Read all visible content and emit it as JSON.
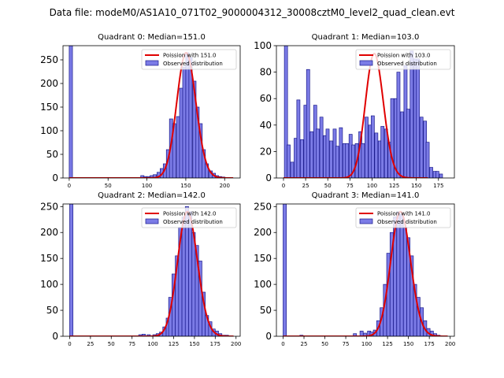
{
  "figure": {
    "suptitle": "Data file: modeM0/AS1A10_071T02_9000004312_30008cztM0_level2_quad_clean.evt"
  },
  "colors": {
    "bar_fill": "#7b7be6",
    "bar_edge": "#1a1a8c",
    "curve": "#e00000",
    "axes": "#000000"
  },
  "chart_data": [
    {
      "type": "bar",
      "title": "Quadrant 0: Median=151.0",
      "xlim": [
        -8,
        220
      ],
      "ylim": [
        0,
        280
      ],
      "xticks": [
        0,
        50,
        100,
        150,
        200
      ],
      "yticks": [
        0,
        50,
        100,
        150,
        200,
        250
      ],
      "bin_width": 4.2,
      "bins": [
        [
          0,
          280
        ],
        [
          92,
          5
        ],
        [
          96,
          3
        ],
        [
          100,
          3
        ],
        [
          104,
          5
        ],
        [
          108,
          7
        ],
        [
          113,
          12
        ],
        [
          117,
          20
        ],
        [
          121,
          30
        ],
        [
          125,
          60
        ],
        [
          129,
          125
        ],
        [
          133,
          115
        ],
        [
          138,
          130
        ],
        [
          142,
          190
        ],
        [
          146,
          235
        ],
        [
          150,
          265
        ],
        [
          154,
          255
        ],
        [
          159,
          205
        ],
        [
          163,
          150
        ],
        [
          167,
          115
        ],
        [
          171,
          60
        ],
        [
          175,
          30
        ],
        [
          180,
          15
        ],
        [
          184,
          10
        ],
        [
          188,
          5
        ],
        [
          192,
          3
        ],
        [
          196,
          2
        ]
      ],
      "fit": {
        "label": "Poission with 151.0",
        "lambda": 151.0,
        "amplitude": 265
      },
      "legend": {
        "curve_label": "Poission with 151.0",
        "bar_label": "Observed distribution",
        "position": "top-right"
      }
    },
    {
      "type": "bar",
      "title": "Quadrant 1: Median=103.0",
      "xlim": [
        -8,
        193
      ],
      "ylim": [
        0,
        100
      ],
      "xticks": [
        0,
        25,
        50,
        75,
        100,
        125,
        150,
        175
      ],
      "yticks": [
        0,
        20,
        40,
        60,
        80,
        100
      ],
      "bin_width": 3.6,
      "bins": [
        [
          1,
          100
        ],
        [
          4,
          25
        ],
        [
          8,
          12
        ],
        [
          12,
          30
        ],
        [
          15,
          59
        ],
        [
          19,
          29
        ],
        [
          23,
          55
        ],
        [
          26,
          82
        ],
        [
          30,
          35
        ],
        [
          34,
          55
        ],
        [
          37,
          37
        ],
        [
          41,
          46
        ],
        [
          45,
          32
        ],
        [
          48,
          37
        ],
        [
          52,
          28
        ],
        [
          56,
          37
        ],
        [
          59,
          24
        ],
        [
          63,
          38
        ],
        [
          67,
          26
        ],
        [
          70,
          26
        ],
        [
          74,
          33
        ],
        [
          77,
          25
        ],
        [
          81,
          26
        ],
        [
          85,
          35
        ],
        [
          88,
          26
        ],
        [
          92,
          46
        ],
        [
          96,
          40
        ],
        [
          99,
          47
        ],
        [
          103,
          34
        ],
        [
          107,
          28
        ],
        [
          110,
          39
        ],
        [
          114,
          37
        ],
        [
          118,
          27
        ],
        [
          121,
          60
        ],
        [
          125,
          60
        ],
        [
          128,
          80
        ],
        [
          132,
          50
        ],
        [
          136,
          85
        ],
        [
          139,
          52
        ],
        [
          143,
          96
        ],
        [
          147,
          90
        ],
        [
          150,
          90
        ],
        [
          154,
          46
        ],
        [
          158,
          43
        ],
        [
          161,
          27
        ],
        [
          165,
          8
        ],
        [
          169,
          5
        ],
        [
          172,
          5
        ],
        [
          176,
          3
        ]
      ],
      "fit": {
        "label": "Poission with 103.0",
        "lambda": 103.0,
        "amplitude": 94
      },
      "legend": {
        "curve_label": "Poission with 103.0",
        "bar_label": "Observed distribution",
        "position": "top-right"
      }
    },
    {
      "type": "bar",
      "title": "Quadrant 2: Median=142.0",
      "xlim": [
        -8,
        205
      ],
      "ylim": [
        0,
        255
      ],
      "xticks": [
        0,
        25,
        50,
        75,
        100,
        125,
        150,
        175,
        200
      ],
      "yticks": [
        0,
        50,
        100,
        150,
        200,
        250
      ],
      "bin_width": 4.0,
      "bins": [
        [
          0,
          255
        ],
        [
          83,
          3
        ],
        [
          87,
          4
        ],
        [
          93,
          3
        ],
        [
          100,
          3
        ],
        [
          104,
          5
        ],
        [
          108,
          8
        ],
        [
          112,
          18
        ],
        [
          116,
          35
        ],
        [
          119,
          75
        ],
        [
          123,
          120
        ],
        [
          127,
          155
        ],
        [
          131,
          210
        ],
        [
          135,
          230
        ],
        [
          139,
          250
        ],
        [
          143,
          240
        ],
        [
          147,
          200
        ],
        [
          151,
          175
        ],
        [
          155,
          145
        ],
        [
          159,
          85
        ],
        [
          163,
          40
        ],
        [
          167,
          28
        ],
        [
          171,
          14
        ],
        [
          175,
          10
        ],
        [
          179,
          5
        ],
        [
          183,
          2
        ],
        [
          187,
          2
        ],
        [
          191,
          1
        ]
      ],
      "fit": {
        "label": "Poission with 142.0",
        "lambda": 142.0,
        "amplitude": 240
      },
      "legend": {
        "curve_label": "Poission with 142.0",
        "bar_label": "Observed distribution",
        "position": "top-right"
      }
    },
    {
      "type": "bar",
      "title": "Quadrant 3: Median=141.0",
      "xlim": [
        -8,
        205
      ],
      "ylim": [
        0,
        255
      ],
      "xticks": [
        0,
        25,
        50,
        75,
        100,
        125,
        150,
        175,
        200
      ],
      "yticks": [
        0,
        50,
        100,
        150,
        200,
        250
      ],
      "bin_width": 3.9,
      "bins": [
        [
          0,
          255
        ],
        [
          20,
          2
        ],
        [
          84,
          5
        ],
        [
          92,
          10
        ],
        [
          96,
          6
        ],
        [
          101,
          10
        ],
        [
          104,
          8
        ],
        [
          108,
          12
        ],
        [
          112,
          30
        ],
        [
          116,
          55
        ],
        [
          120,
          100
        ],
        [
          124,
          160
        ],
        [
          128,
          200
        ],
        [
          132,
          230
        ],
        [
          136,
          240
        ],
        [
          140,
          235
        ],
        [
          144,
          210
        ],
        [
          148,
          190
        ],
        [
          152,
          155
        ],
        [
          156,
          100
        ],
        [
          160,
          75
        ],
        [
          164,
          55
        ],
        [
          168,
          30
        ],
        [
          172,
          15
        ],
        [
          176,
          10
        ],
        [
          180,
          5
        ],
        [
          184,
          2
        ],
        [
          188,
          1
        ]
      ],
      "fit": {
        "label": "Poission with 141.0",
        "lambda": 141.0,
        "amplitude": 240
      },
      "legend": {
        "curve_label": "Poission with 141.0",
        "bar_label": "Observed distribution",
        "position": "top-right"
      }
    }
  ]
}
